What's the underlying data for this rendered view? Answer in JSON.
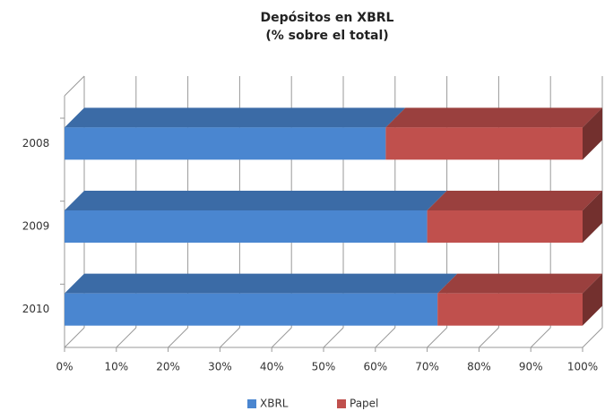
{
  "chart_data": {
    "type": "stacked-bar-horizontal-3d",
    "title": "Depósitos en XBRL",
    "subtitle": "(% sobre el total)",
    "categories": [
      "2008",
      "2009",
      "2010"
    ],
    "series": [
      {
        "name": "XBRL",
        "color": "#4a86d0",
        "values": [
          62,
          70,
          72
        ]
      },
      {
        "name": "Papel",
        "color": "#c0504d",
        "values": [
          38,
          30,
          28
        ]
      }
    ],
    "xlim": [
      0,
      100
    ],
    "xticks": [
      {
        "value": 0,
        "label": "0%"
      },
      {
        "value": 10,
        "label": "10%"
      },
      {
        "value": 20,
        "label": "20%"
      },
      {
        "value": 30,
        "label": "30%"
      },
      {
        "value": 40,
        "label": "40%"
      },
      {
        "value": 50,
        "label": "50%"
      },
      {
        "value": 60,
        "label": "60%"
      },
      {
        "value": 70,
        "label": "70%"
      },
      {
        "value": 80,
        "label": "80%"
      },
      {
        "value": 90,
        "label": "90%"
      },
      {
        "value": 100,
        "label": "100%"
      }
    ],
    "grid": true,
    "legend": "bottom"
  }
}
